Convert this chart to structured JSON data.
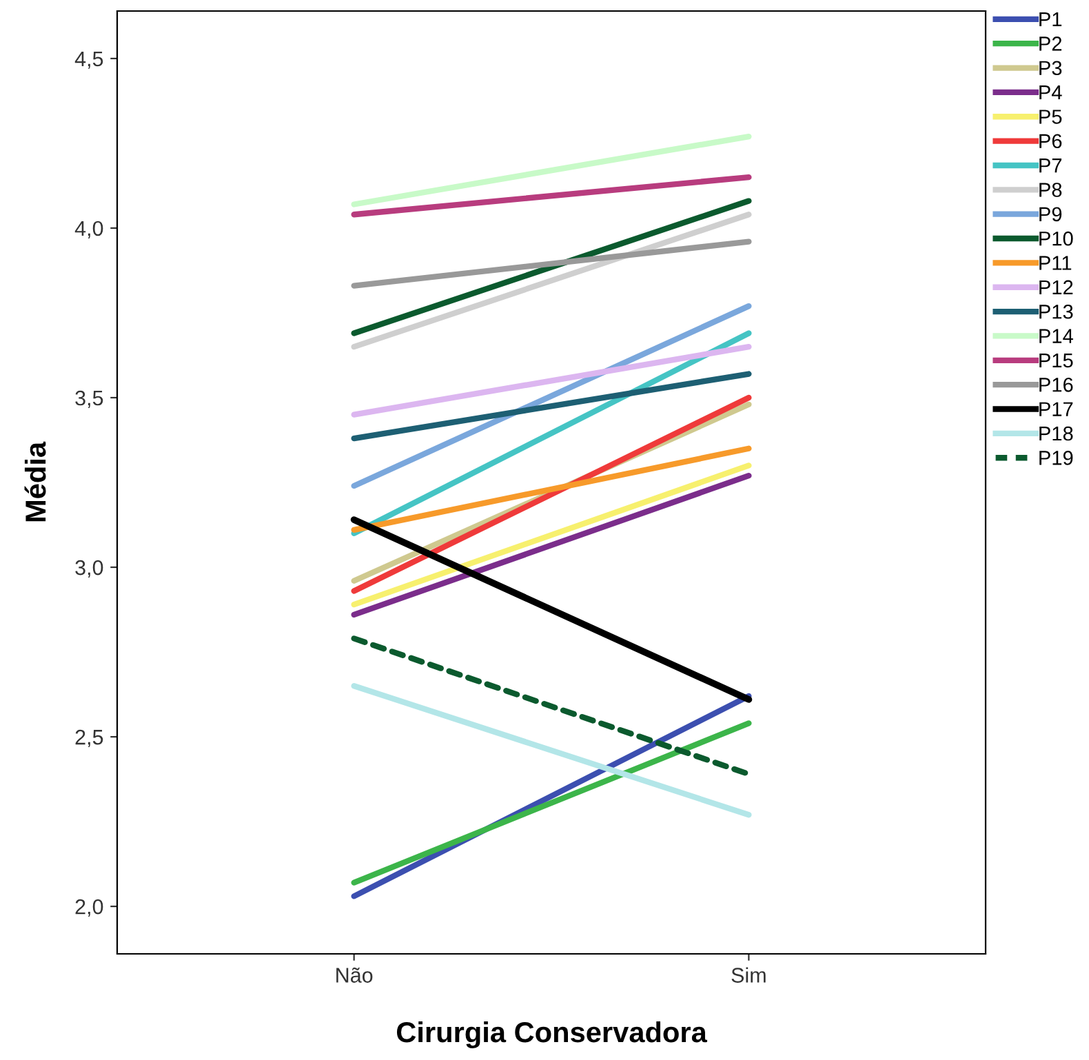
{
  "chart_data": {
    "type": "line",
    "xlabel": "Cirurgia Conservadora",
    "ylabel": "Média",
    "categories": [
      "Não",
      "Sim"
    ],
    "ylim": [
      1.86,
      4.64
    ],
    "yticks": [
      {
        "value": 2.0,
        "label": "2,0"
      },
      {
        "value": 2.5,
        "label": "2,5"
      },
      {
        "value": 3.0,
        "label": "3,0"
      },
      {
        "value": 3.5,
        "label": "3,5"
      },
      {
        "value": 4.0,
        "label": "4,0"
      },
      {
        "value": 4.5,
        "label": "4,5"
      }
    ],
    "grid": false,
    "legend": "top right",
    "marker": "none",
    "series": [
      {
        "name": "P1",
        "color": "#3c4fb0",
        "values": [
          2.03,
          2.62
        ]
      },
      {
        "name": "P2",
        "color": "#3cb54a",
        "values": [
          2.07,
          2.54
        ]
      },
      {
        "name": "P3",
        "color": "#cfc98f",
        "values": [
          2.96,
          3.48
        ]
      },
      {
        "name": "P4",
        "color": "#7b2d8b",
        "values": [
          2.86,
          3.27
        ]
      },
      {
        "name": "P5",
        "color": "#f7f06e",
        "values": [
          2.89,
          3.3
        ]
      },
      {
        "name": "P6",
        "color": "#ef3a3a",
        "values": [
          2.93,
          3.5
        ]
      },
      {
        "name": "P7",
        "color": "#45c4c4",
        "values": [
          3.1,
          3.69
        ]
      },
      {
        "name": "P8",
        "color": "#cfcfcf",
        "values": [
          3.65,
          4.04
        ]
      },
      {
        "name": "P9",
        "color": "#7aa7dc",
        "values": [
          3.24,
          3.77
        ]
      },
      {
        "name": "P10",
        "color": "#0b5a2e",
        "values": [
          3.69,
          4.08
        ]
      },
      {
        "name": "P11",
        "color": "#f79a2a",
        "values": [
          3.11,
          3.35
        ]
      },
      {
        "name": "P12",
        "color": "#dcb6f0",
        "values": [
          3.45,
          3.65
        ]
      },
      {
        "name": "P13",
        "color": "#1d5f73",
        "values": [
          3.38,
          3.57
        ]
      },
      {
        "name": "P14",
        "color": "#c8fac8",
        "values": [
          4.07,
          4.27
        ]
      },
      {
        "name": "P15",
        "color": "#b83c7e",
        "values": [
          4.04,
          4.15
        ]
      },
      {
        "name": "P16",
        "color": "#999999",
        "values": [
          3.83,
          3.96
        ]
      },
      {
        "name": "P17",
        "color": "#000000",
        "values": [
          3.14,
          2.61
        ]
      },
      {
        "name": "P18",
        "color": "#b3e6e8",
        "values": [
          2.65,
          2.27
        ]
      },
      {
        "name": "P19",
        "color": "#0b5a2e",
        "values": [
          2.79,
          2.39
        ],
        "line_style": "dashed"
      }
    ]
  }
}
